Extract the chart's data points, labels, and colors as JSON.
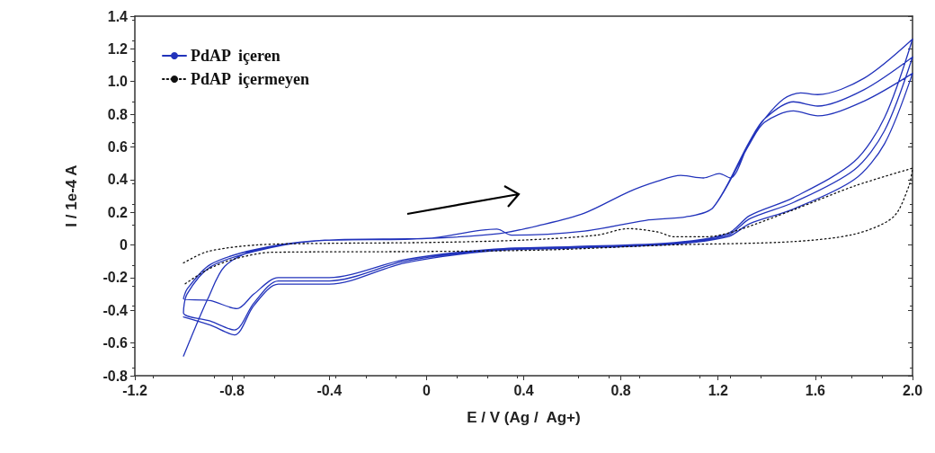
{
  "chart_data": {
    "type": "line",
    "xlabel": "E / V (Ag /  Ag+)",
    "ylabel": "I / 1e-4 A",
    "xlim": [
      -1.2,
      2.0
    ],
    "xticks": [
      -1.2,
      -0.8,
      -0.4,
      0,
      0.4,
      0.8,
      1.2,
      1.6,
      {
        "value": 2.0,
        "label": "2.0"
      }
    ],
    "ylim": [
      -0.8,
      1.4
    ],
    "yticks": [
      -0.8,
      -0.6,
      -0.4,
      -0.2,
      0,
      0.2,
      0.4,
      0.6,
      0.8,
      {
        "value": 1.0,
        "label": "1.0"
      },
      1.2,
      1.4
    ],
    "grid": false,
    "legend": "top left",
    "marker": "none",
    "series": [
      {
        "name": "PdAP  içeren",
        "color": "#2233bb",
        "line_style": "solid",
        "x": [
          -1.0,
          -0.95,
          -0.9,
          -0.83,
          -0.7,
          -0.4,
          0,
          0.3,
          0.465,
          0.65,
          0.835,
          0.95,
          1.046,
          1.14,
          1.205,
          1.25,
          1.33,
          1.39,
          1.47,
          1.54,
          1.61,
          1.8,
          2.0,
          1.885,
          1.76,
          1.51,
          1.33,
          1.24,
          1.02,
          0.6,
          0.28,
          -0.09,
          -0.4,
          -0.61,
          -0.71,
          -0.78,
          -0.89,
          -1.0,
          -0.985,
          -0.89,
          -0.71,
          -0.46,
          0,
          0.29,
          0.35,
          0.65,
          0.9,
          1.08,
          1.18,
          1.33,
          1.39,
          1.51,
          1.61,
          1.8,
          2.0,
          1.885,
          1.76,
          1.51,
          1.33,
          1.24,
          1.02,
          0.6,
          0.28,
          -0.09,
          -0.4,
          -0.61,
          -0.71,
          -0.79,
          -0.89,
          -1.0,
          -0.985,
          -0.89,
          -0.71,
          -0.46,
          0,
          0.29,
          0.35,
          0.65,
          0.9,
          1.08,
          1.18,
          1.33,
          1.39,
          1.51,
          1.61,
          1.8,
          2.0,
          1.885,
          1.76,
          1.51,
          1.33,
          1.24,
          1.02,
          0.6,
          0.28,
          -0.09,
          -0.4,
          -0.61,
          -0.71,
          -0.79,
          -0.89,
          -1.0
        ],
        "values": [
          -0.68,
          -0.5,
          -0.33,
          -0.13,
          -0.03,
          0.03,
          0.04,
          0.07,
          0.12,
          0.195,
          0.327,
          0.39,
          0.426,
          0.41,
          0.437,
          0.41,
          0.635,
          0.77,
          0.894,
          0.93,
          0.92,
          1.02,
          1.26,
          0.78,
          0.51,
          0.29,
          0.18,
          0.07,
          0.015,
          -0.01,
          -0.025,
          -0.09,
          -0.2,
          -0.2,
          -0.3,
          -0.39,
          -0.34,
          -0.33,
          -0.27,
          -0.12,
          -0.03,
          0.025,
          0.04,
          0.097,
          0.06,
          0.085,
          0.15,
          0.175,
          0.23,
          0.635,
          0.77,
          0.876,
          0.85,
          0.95,
          1.15,
          0.7,
          0.46,
          0.26,
          0.16,
          0.06,
          0.01,
          -0.015,
          -0.03,
          -0.1,
          -0.22,
          -0.22,
          -0.355,
          -0.52,
          -0.465,
          -0.415,
          -0.3,
          -0.135,
          -0.04,
          0.025,
          0.04,
          0.097,
          0.06,
          0.085,
          0.15,
          0.175,
          0.23,
          0.62,
          0.75,
          0.82,
          0.79,
          0.88,
          1.05,
          0.62,
          0.4,
          0.22,
          0.13,
          0.05,
          0.005,
          -0.02,
          -0.035,
          -0.11,
          -0.24,
          -0.24,
          -0.37,
          -0.55,
          -0.49,
          -0.44
        ]
      },
      {
        "name": "PdAP  içermeyen",
        "color": "#111111",
        "line_style": "dotted",
        "x": [
          -1.0,
          -0.9,
          -0.7,
          -0.4,
          0,
          0.4,
          0.7,
          0.83,
          0.95,
          1.02,
          1.15,
          1.27,
          1.51,
          1.76,
          2.0,
          1.985,
          1.92,
          1.76,
          1.5,
          1.0,
          0.5,
          0,
          -0.64,
          -0.8,
          -0.9,
          -1.0
        ],
        "values": [
          -0.11,
          -0.04,
          0.0,
          0.01,
          0.015,
          0.03,
          0.06,
          0.1,
          0.08,
          0.05,
          0.05,
          0.085,
          0.215,
          0.36,
          0.47,
          0.36,
          0.17,
          0.066,
          0.02,
          0.0,
          -0.03,
          -0.04,
          -0.045,
          -0.09,
          -0.15,
          -0.245
        ]
      }
    ]
  }
}
